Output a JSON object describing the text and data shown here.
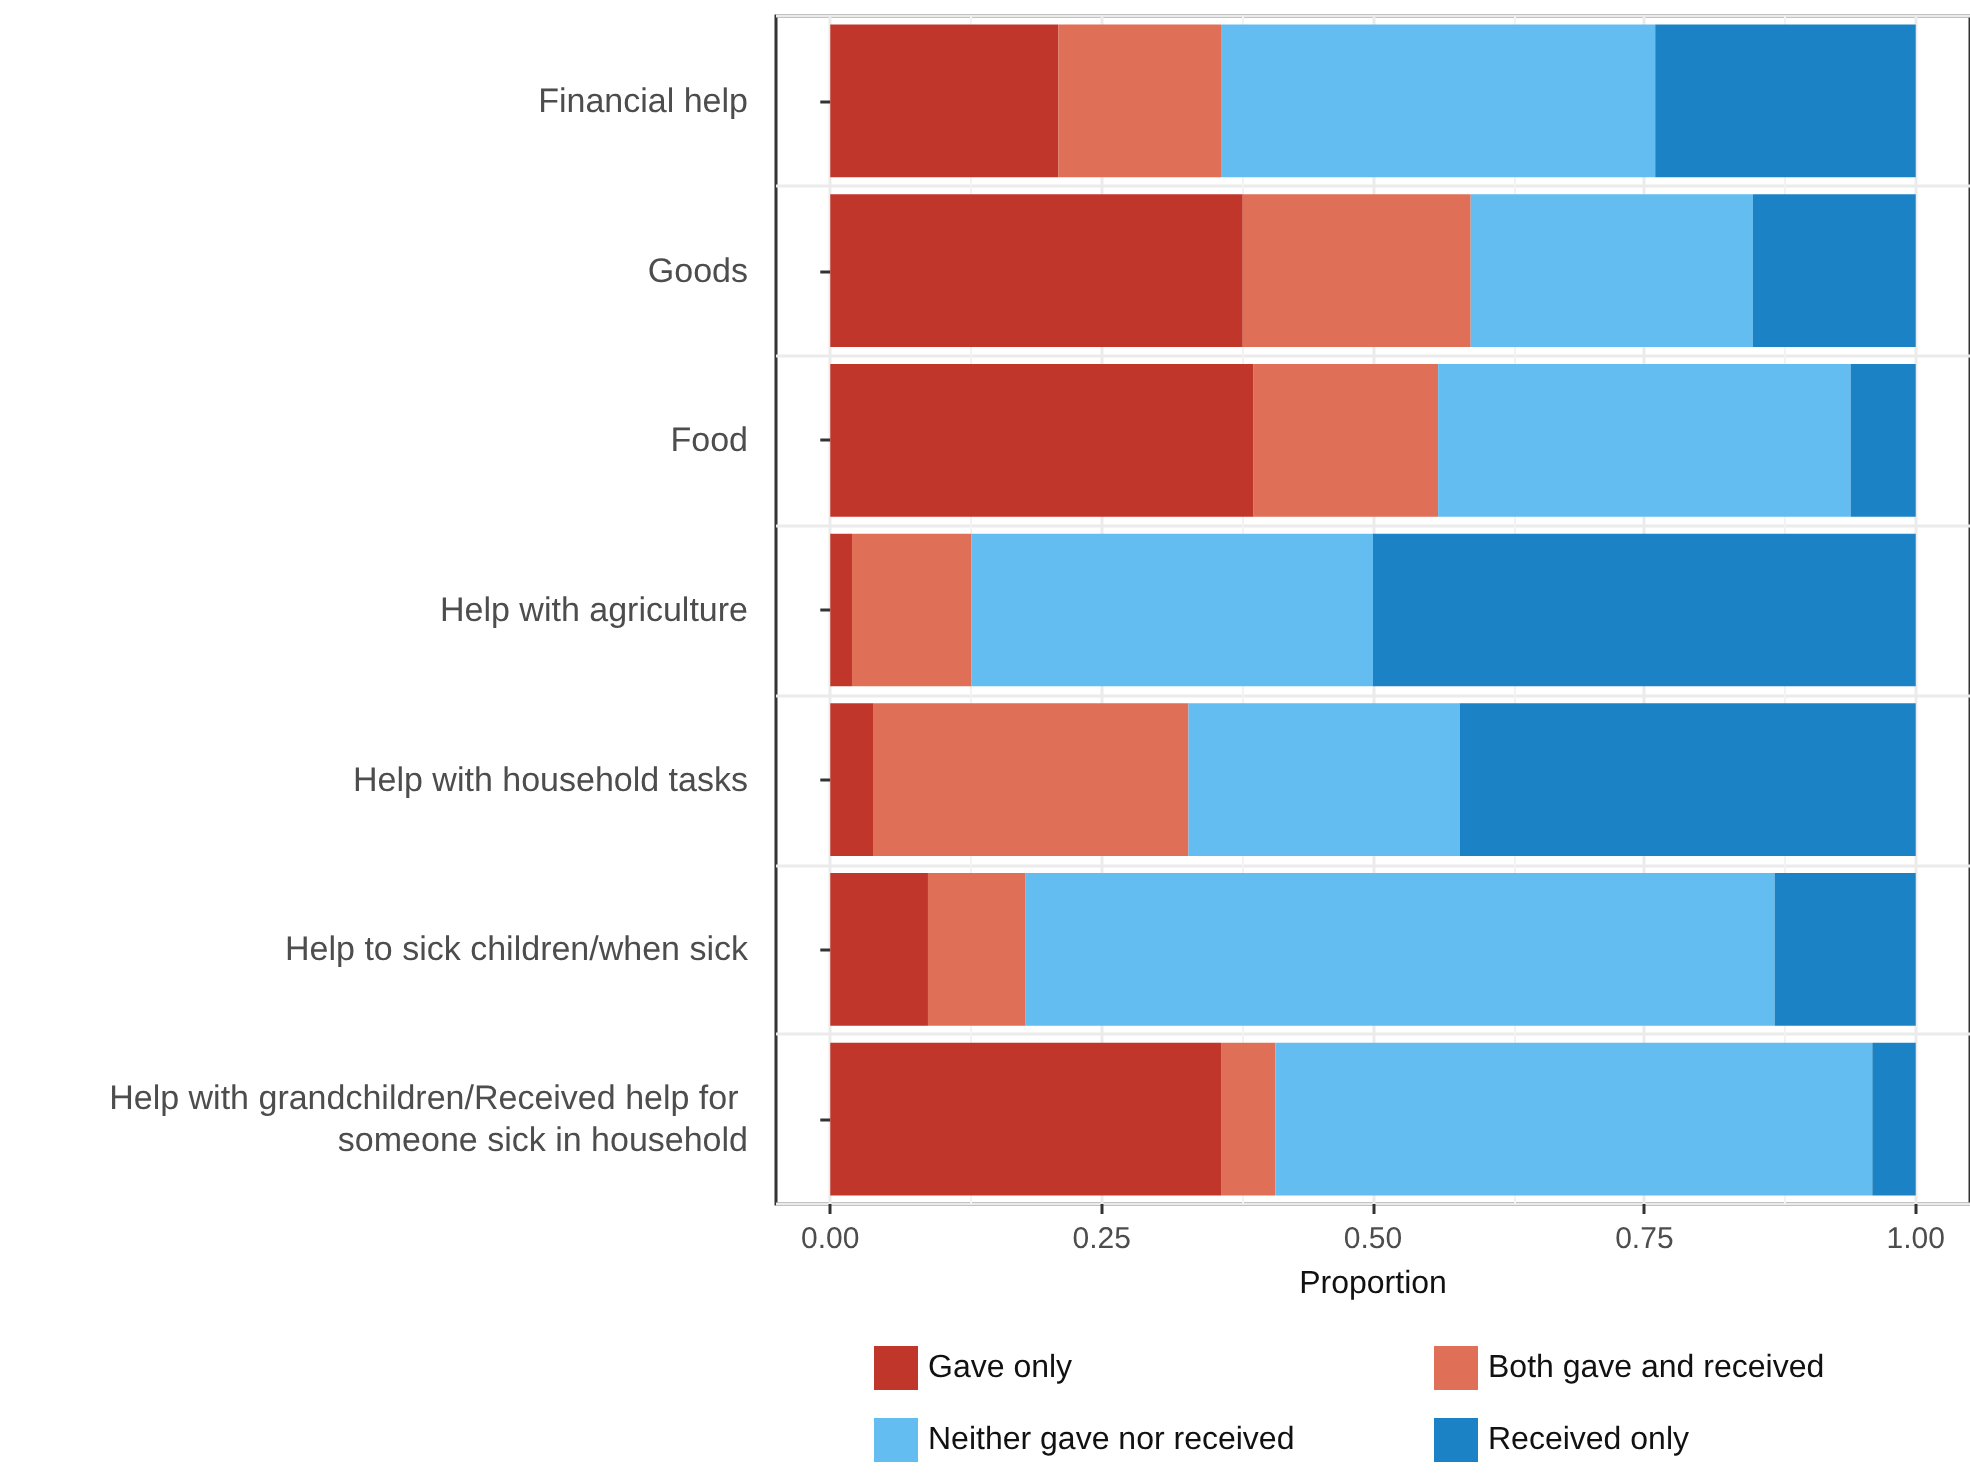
{
  "chart_data": {
    "type": "bar",
    "orientation": "horizontal",
    "stacked": true,
    "xlabel": "Proportion",
    "categories": [
      "Financial help",
      "Goods",
      "Food",
      "Help with agriculture",
      "Help with household tasks",
      "Help to sick children/when sick",
      "Help with grandchildren/Received help for someone sick in household"
    ],
    "series": [
      {
        "name": "Gave only",
        "color": "#c0362a",
        "values": [
          0.21,
          0.38,
          0.39,
          0.02,
          0.04,
          0.09,
          0.36
        ]
      },
      {
        "name": "Both gave and received",
        "color": "#e06f57",
        "values": [
          0.15,
          0.21,
          0.17,
          0.11,
          0.29,
          0.09,
          0.05
        ]
      },
      {
        "name": "Neither gave nor received",
        "color": "#63bdf0",
        "values": [
          0.4,
          0.26,
          0.38,
          0.37,
          0.25,
          0.69,
          0.55
        ]
      },
      {
        "name": "Received only",
        "color": "#1b83c5",
        "values": [
          0.24,
          0.15,
          0.06,
          0.5,
          0.42,
          0.13,
          0.04
        ]
      }
    ],
    "xlim": [
      -0.05,
      1.05
    ],
    "xticks": [
      {
        "value": 0,
        "label": "0.00"
      },
      {
        "value": 0.25,
        "label": "0.25"
      },
      {
        "value": 0.5,
        "label": "0.50"
      },
      {
        "value": 0.75,
        "label": "0.75"
      },
      {
        "value": 1,
        "label": "1.00"
      }
    ],
    "grid": true,
    "legend": "bottom"
  }
}
